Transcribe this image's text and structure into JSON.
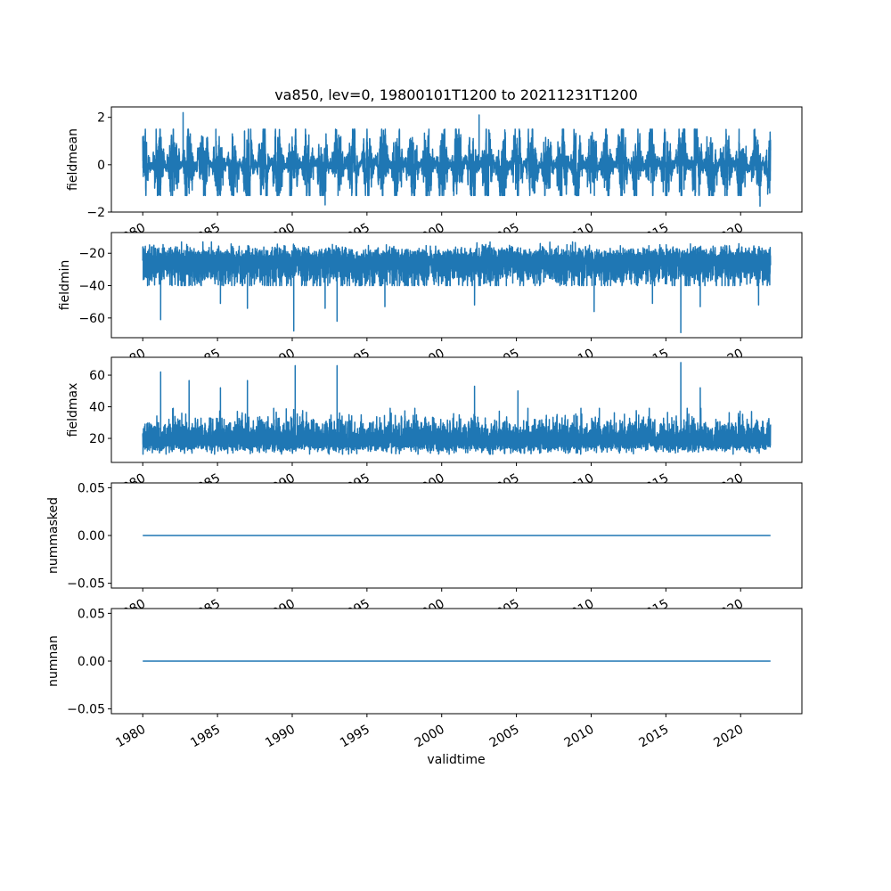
{
  "title": "va850, lev=0, 19800101T1200 to 20211231T1200",
  "xlabel": "validtime",
  "line_color": "#1f77b4",
  "chart_data": [
    {
      "type": "line",
      "name": "fieldmean",
      "ylabel": "fieldmean",
      "x_range": [
        1980.0,
        2022.0
      ],
      "xlim": [
        1977.9,
        2024.1
      ],
      "xticks": [
        1980,
        1985,
        1990,
        1995,
        2000,
        2005,
        2010,
        2015,
        2020
      ],
      "xtick_labels": [
        "1980",
        "1985",
        "1990",
        "1995",
        "2000",
        "2005",
        "2010",
        "2015",
        "2020"
      ],
      "ylim": [
        -2.0,
        2.44
      ],
      "yticks": [
        -2,
        0,
        2
      ],
      "ytick_labels": [
        "−2",
        "0",
        "2"
      ],
      "model": {
        "center": 0.0,
        "typical_low": -1.3,
        "typical_high": 1.5,
        "seasonal": true
      },
      "extremes": [
        {
          "x": 1982.7,
          "y": 2.2
        },
        {
          "x": 2002.5,
          "y": 2.1
        },
        {
          "x": 1992.2,
          "y": -1.7
        },
        {
          "x": 2021.3,
          "y": -1.75
        }
      ]
    },
    {
      "type": "line",
      "name": "fieldmin",
      "ylabel": "fieldmin",
      "x_range": [
        1980.0,
        2022.0
      ],
      "xlim": [
        1977.9,
        2024.1
      ],
      "xticks": [
        1980,
        1985,
        1990,
        1995,
        2000,
        2005,
        2010,
        2015,
        2020
      ],
      "xtick_labels": [
        "1980",
        "1985",
        "1990",
        "1995",
        "2000",
        "2005",
        "2010",
        "2015",
        "2020"
      ],
      "ylim": [
        -72.2,
        -7.2
      ],
      "yticks": [
        -60,
        -40,
        -20
      ],
      "ytick_labels": [
        "−60",
        "−40",
        "−20"
      ],
      "model": {
        "center": -22,
        "typical_low": -34,
        "typical_high": -13
      },
      "extremes": [
        {
          "x": 1981.2,
          "y": -61
        },
        {
          "x": 1985.2,
          "y": -51
        },
        {
          "x": 1987.0,
          "y": -54
        },
        {
          "x": 1990.1,
          "y": -68
        },
        {
          "x": 1992.2,
          "y": -54
        },
        {
          "x": 1993.0,
          "y": -62
        },
        {
          "x": 1996.2,
          "y": -53
        },
        {
          "x": 2002.2,
          "y": -52
        },
        {
          "x": 2010.2,
          "y": -56
        },
        {
          "x": 2014.1,
          "y": -51
        },
        {
          "x": 2016.0,
          "y": -69
        },
        {
          "x": 2017.3,
          "y": -53
        },
        {
          "x": 2021.2,
          "y": -52
        }
      ]
    },
    {
      "type": "line",
      "name": "fieldmax",
      "ylabel": "fieldmax",
      "x_range": [
        1980.0,
        2022.0
      ],
      "xlim": [
        1977.9,
        2024.1
      ],
      "xticks": [
        1980,
        1985,
        1990,
        1995,
        2000,
        2005,
        2010,
        2015,
        2020
      ],
      "xtick_labels": [
        "1980",
        "1985",
        "1990",
        "1995",
        "2000",
        "2005",
        "2010",
        "2015",
        "2020"
      ],
      "ylim": [
        4.8,
        71.3
      ],
      "yticks": [
        20,
        40,
        60
      ],
      "ytick_labels": [
        "20",
        "40",
        "60"
      ],
      "model": {
        "center": 18,
        "typical_low": 10,
        "typical_high": 33
      },
      "extremes": [
        {
          "x": 1981.2,
          "y": 62
        },
        {
          "x": 1983.1,
          "y": 56.6
        },
        {
          "x": 1985.2,
          "y": 52
        },
        {
          "x": 1987.0,
          "y": 56.6
        },
        {
          "x": 1990.2,
          "y": 66
        },
        {
          "x": 1993.0,
          "y": 66
        },
        {
          "x": 2002.2,
          "y": 53
        },
        {
          "x": 2005.1,
          "y": 50
        },
        {
          "x": 2016.0,
          "y": 68
        },
        {
          "x": 2017.3,
          "y": 52
        }
      ]
    },
    {
      "type": "line",
      "name": "nummasked",
      "ylabel": "nummasked",
      "x_range": [
        1980.0,
        2022.0
      ],
      "xlim": [
        1977.9,
        2024.1
      ],
      "xticks": [
        1980,
        1985,
        1990,
        1995,
        2000,
        2005,
        2010,
        2015,
        2020
      ],
      "xtick_labels": [
        "1980",
        "1985",
        "1990",
        "1995",
        "2000",
        "2005",
        "2010",
        "2015",
        "2020"
      ],
      "ylim": [
        -0.055,
        0.055
      ],
      "yticks": [
        -0.05,
        0.0,
        0.05
      ],
      "ytick_labels": [
        "−0.05",
        "0.00",
        "0.05"
      ],
      "constant": 0.0
    },
    {
      "type": "line",
      "name": "numnan",
      "ylabel": "numnan",
      "x_range": [
        1980.0,
        2022.0
      ],
      "xlim": [
        1977.9,
        2024.1
      ],
      "xticks": [
        1980,
        1985,
        1990,
        1995,
        2000,
        2005,
        2010,
        2015,
        2020
      ],
      "xtick_labels": [
        "1980",
        "1985",
        "1990",
        "1995",
        "2000",
        "2005",
        "2010",
        "2015",
        "2020"
      ],
      "ylim": [
        -0.055,
        0.055
      ],
      "yticks": [
        -0.05,
        0.0,
        0.05
      ],
      "ytick_labels": [
        "−0.05",
        "0.00",
        "0.05"
      ],
      "constant": 0.0
    }
  ]
}
